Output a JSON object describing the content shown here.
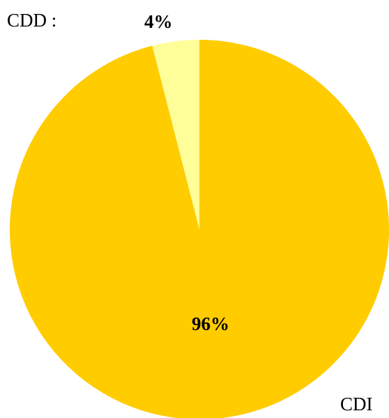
{
  "chart_data": {
    "type": "pie",
    "categories": [
      "CDD :",
      "CDI"
    ],
    "values": [
      4,
      96
    ],
    "data_labels": [
      "4%",
      "96%"
    ],
    "colors": [
      "#FFFF99",
      "#FFCC00"
    ],
    "start": "12 o'clock",
    "direction": "counterclockwise",
    "title": "",
    "legend": "none"
  }
}
